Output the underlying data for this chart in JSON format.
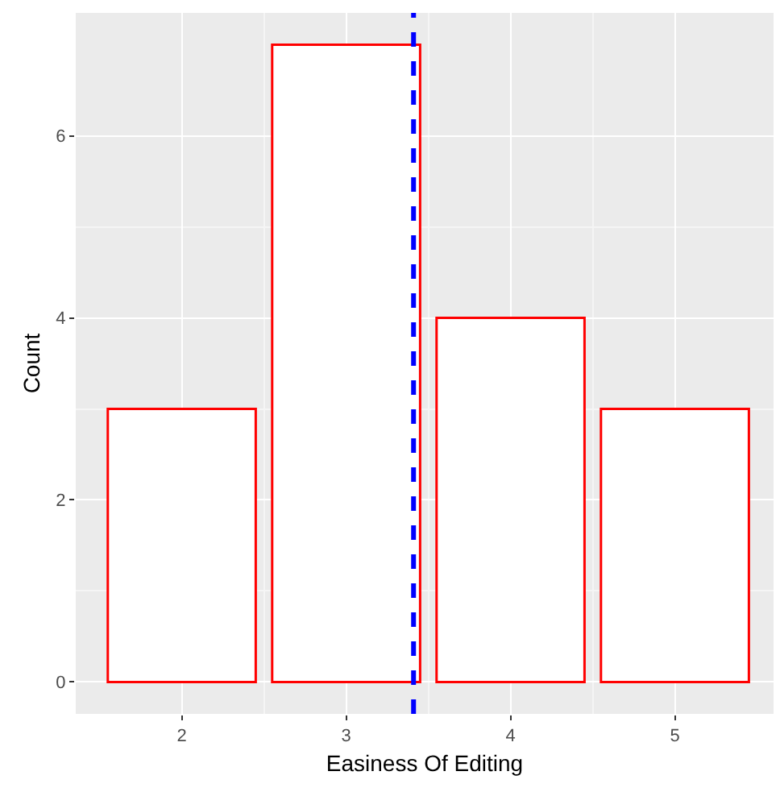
{
  "chart_data": {
    "type": "bar",
    "xlabel": "Easiness Of Editing",
    "ylabel": "Count",
    "x": [
      2,
      3,
      4,
      5
    ],
    "values": [
      3,
      7,
      4,
      3
    ],
    "color": "#ff0000",
    "xlim": [
      1.355,
      5.6
    ],
    "xticks": [
      2,
      3,
      4,
      5
    ],
    "ylim": [
      -0.35,
      7.35
    ],
    "yticks": [
      0,
      2,
      4,
      6
    ],
    "ref_lines": [
      {
        "axis": "x",
        "value": 3.41,
        "color": "#0000ff",
        "line_style": "dashed"
      }
    ],
    "grid": true,
    "legend": false
  }
}
